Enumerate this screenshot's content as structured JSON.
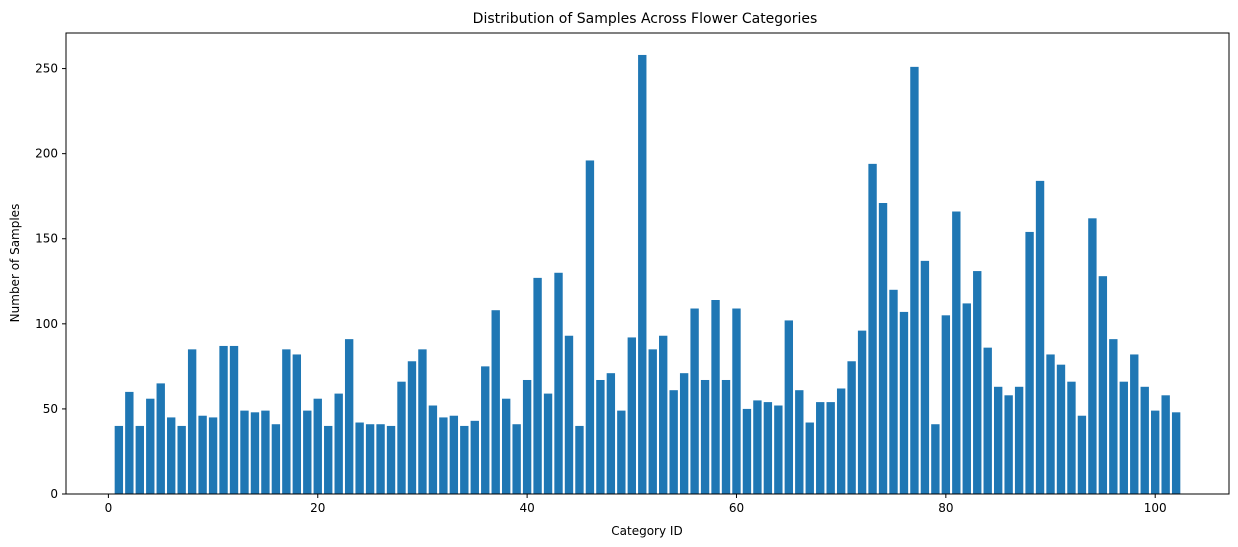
{
  "chart_data": {
    "type": "bar",
    "title": "Distribution of Samples Across Flower Categories",
    "xlabel": "Category ID",
    "ylabel": "Number of Samples",
    "xlim": [
      -4.05,
      107.05
    ],
    "ylim": [
      0,
      270.9
    ],
    "xticks": [
      0,
      20,
      40,
      60,
      80,
      100
    ],
    "yticks": [
      0,
      50,
      100,
      150,
      200,
      250
    ],
    "grid": false,
    "bar_color": "#1f77b4",
    "x": [
      1,
      2,
      3,
      4,
      5,
      6,
      7,
      8,
      9,
      10,
      11,
      12,
      13,
      14,
      15,
      16,
      17,
      18,
      19,
      20,
      21,
      22,
      23,
      24,
      25,
      26,
      27,
      28,
      29,
      30,
      31,
      32,
      33,
      34,
      35,
      36,
      37,
      38,
      39,
      40,
      41,
      42,
      43,
      44,
      45,
      46,
      47,
      48,
      49,
      50,
      51,
      52,
      53,
      54,
      55,
      56,
      57,
      58,
      59,
      60,
      61,
      62,
      63,
      64,
      65,
      66,
      67,
      68,
      69,
      70,
      71,
      72,
      73,
      74,
      75,
      76,
      77,
      78,
      79,
      80,
      81,
      82,
      83,
      84,
      85,
      86,
      87,
      88,
      89,
      90,
      91,
      92,
      93,
      94,
      95,
      96,
      97,
      98,
      99,
      100,
      101,
      102
    ],
    "values": [
      40,
      60,
      40,
      56,
      65,
      45,
      40,
      85,
      46,
      45,
      87,
      87,
      49,
      48,
      49,
      41,
      85,
      82,
      49,
      56,
      40,
      59,
      91,
      42,
      41,
      41,
      40,
      66,
      78,
      85,
      52,
      45,
      46,
      40,
      43,
      75,
      108,
      56,
      41,
      67,
      127,
      59,
      130,
      93,
      40,
      196,
      67,
      71,
      49,
      92,
      258,
      85,
      93,
      61,
      71,
      109,
      67,
      114,
      67,
      109,
      50,
      55,
      54,
      52,
      102,
      61,
      42,
      54,
      54,
      62,
      78,
      96,
      194,
      171,
      120,
      107,
      251,
      137,
      41,
      105,
      166,
      112,
      131,
      86,
      63,
      58,
      63,
      154,
      184,
      82,
      76,
      66,
      46,
      162,
      128,
      91,
      66,
      82,
      63,
      49,
      58,
      48
    ]
  }
}
